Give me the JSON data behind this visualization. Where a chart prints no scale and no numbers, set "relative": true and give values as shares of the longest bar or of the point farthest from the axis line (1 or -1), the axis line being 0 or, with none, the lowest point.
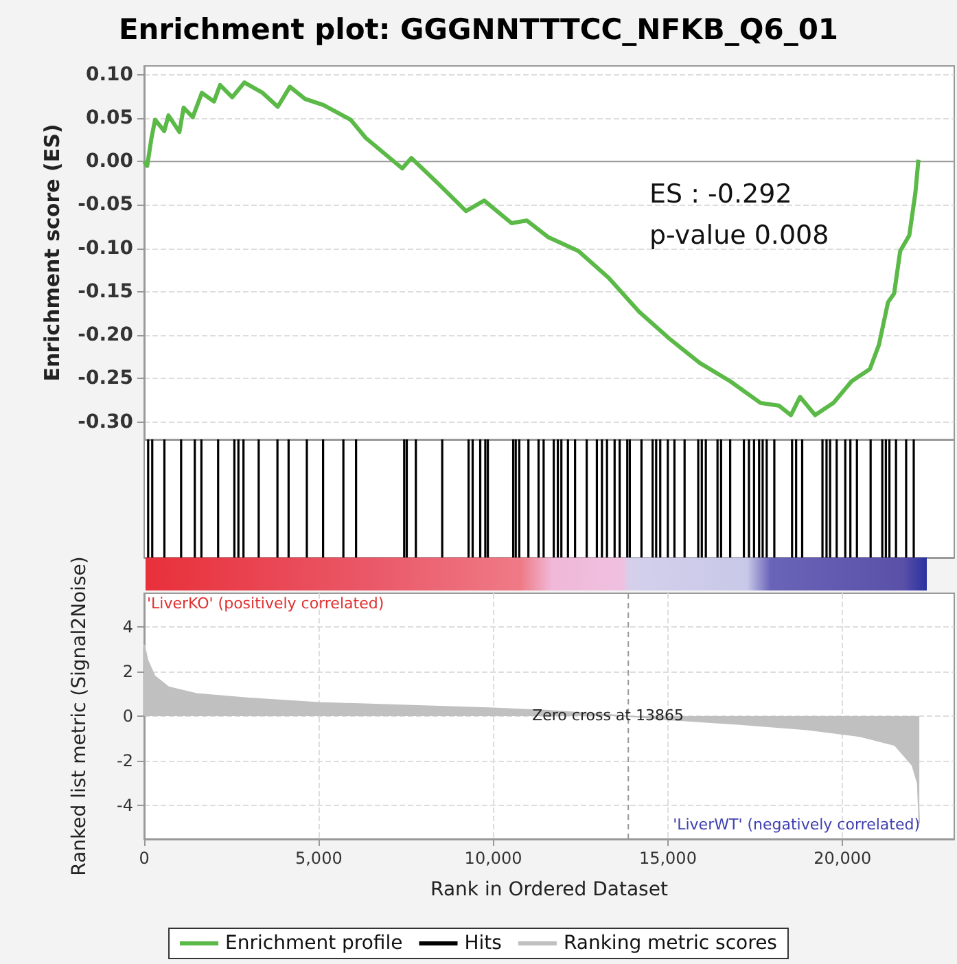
{
  "chart_data": [
    {
      "type": "line",
      "title": "Enrichment plot: GGGNNTTTCC_NFKB_Q6_01",
      "ylabel": "Enrichment score (ES)",
      "annotations": [
        "ES : -0.292",
        "p-value 0.008"
      ],
      "xlim": [
        0,
        23200
      ],
      "ylim": [
        -0.32,
        0.11
      ],
      "yticks": [
        {
          "value": 0.1,
          "label": "0.10"
        },
        0.05,
        {
          "value": 0,
          "label": "0.00"
        },
        -0.05,
        {
          "value": -0.1,
          "label": "-0.10"
        },
        -0.15,
        {
          "value": -0.2,
          "label": "-0.20"
        },
        -0.25,
        {
          "value": -0.3,
          "label": "-0.30"
        }
      ],
      "tick_labels": "y",
      "grid": true,
      "marker": "none",
      "ref_lines": [
        {
          "axis": "y",
          "value": 0,
          "color": "#999999"
        }
      ],
      "series": [
        {
          "name": "Enrichment profile",
          "color": "#5ab947",
          "x": [
            0,
            87,
            209,
            313,
            574,
            696,
            1009,
            1130,
            1391,
            1652,
            2000,
            2174,
            2522,
            2870,
            3391,
            3826,
            4174,
            4609,
            5130,
            5913,
            6348,
            7391,
            7652,
            8435,
            9217,
            9739,
            10522,
            10957,
            11565,
            12435,
            13304,
            14174,
            15043,
            15913,
            16783,
            17652,
            18174,
            18522,
            18783,
            19217,
            19739,
            20261,
            20783,
            21043,
            21304,
            21478,
            21652,
            21913,
            22087,
            22174
          ],
          "values": [
            0,
            -0.005,
            0.027,
            0.048,
            0.035,
            0.053,
            0.034,
            0.062,
            0.051,
            0.079,
            0.069,
            0.088,
            0.074,
            0.091,
            0.079,
            0.063,
            0.086,
            0.072,
            0.065,
            0.048,
            0.027,
            -0.008,
            0.004,
            -0.026,
            -0.057,
            -0.045,
            -0.071,
            -0.068,
            -0.087,
            -0.103,
            -0.134,
            -0.173,
            -0.204,
            -0.232,
            -0.253,
            -0.278,
            -0.281,
            -0.292,
            -0.271,
            -0.292,
            -0.278,
            -0.253,
            -0.239,
            -0.211,
            -0.162,
            -0.152,
            -0.103,
            -0.085,
            -0.036,
            0.002
          ]
        }
      ]
    },
    {
      "type": "bar",
      "relative": true,
      "xlim": [
        0,
        23200
      ],
      "tick_labels": false,
      "grid": false,
      "series": [
        {
          "name": "Hits",
          "color": "#000000",
          "x": [
            114,
            231,
            579,
            1058,
            1450,
            1639,
            2118,
            2583,
            2699,
            2844,
            3280,
            3817,
            4136,
            4659,
            5124,
            5705,
            6068,
            7447,
            7520,
            7781,
            8536,
            9291,
            9407,
            9625,
            9770,
            9843,
            10569,
            10641,
            10743,
            11004,
            11295,
            11440,
            11730,
            11847,
            11948,
            12137,
            12340,
            12674,
            12965,
            13110,
            13255,
            13473,
            13618,
            13836,
            13908,
            14242,
            14562,
            14663,
            14780,
            14997,
            15186,
            15477,
            15868,
            15970,
            16086,
            16420,
            16522,
            16783,
            17175,
            17321,
            17466,
            17611,
            17713,
            17829,
            18047,
            18555,
            18671,
            18845,
            19426,
            19542,
            19644,
            19833,
            20079,
            20225,
            20413,
            20805,
            21139,
            21241,
            21343,
            21532,
            21822,
            22040
          ],
          "values": [
            1,
            1,
            1,
            1,
            1,
            1,
            1,
            1,
            1,
            1,
            1,
            1,
            1,
            1,
            1,
            1,
            1,
            1,
            1,
            1,
            1,
            1,
            1,
            1,
            1,
            1,
            1,
            1,
            1,
            1,
            1,
            1,
            1,
            1,
            1,
            1,
            1,
            1,
            1,
            1,
            1,
            1,
            1,
            1,
            1,
            1,
            1,
            1,
            1,
            1,
            1,
            1,
            1,
            1,
            1,
            1,
            1,
            1,
            1,
            1,
            1,
            1,
            1,
            1,
            1,
            1,
            1,
            1,
            1,
            1,
            1,
            1,
            1,
            1,
            1,
            1,
            1,
            1,
            1,
            1,
            1,
            1
          ]
        }
      ]
    },
    {
      "type": "area",
      "xlabel": "Rank in Ordered Dataset",
      "ylabel": "Ranked list metric (Signal2Noise)",
      "xlim": [
        0,
        23200
      ],
      "xticks": [
        0,
        {
          "value": 5000,
          "label": "5,000"
        },
        {
          "value": 10000,
          "label": "10,000"
        },
        {
          "value": 15000,
          "label": "15,000"
        },
        {
          "value": 20000,
          "label": "20,000"
        }
      ],
      "ylim": [
        -5.5,
        5.5
      ],
      "yticks": [
        4,
        2,
        0,
        -2,
        -4
      ],
      "grid": true,
      "legend": "bottom",
      "annotations": [
        "'LiverKO' (positively correlated)",
        "'LiverWT' (negatively correlated)",
        {
          "text": "Zero cross at 13865",
          "x": 13865,
          "y": 0
        }
      ],
      "ref_lines": [
        {
          "axis": "x",
          "value": 13865,
          "color": "#999999",
          "line_style": "dashed"
        }
      ],
      "series": [
        {
          "name": "Ranking metric scores",
          "color": "#c0c0c0",
          "x": [
            0,
            100,
            300,
            700,
            1500,
            3000,
            5000,
            8000,
            10000,
            11500,
            13865,
            15000,
            17000,
            19000,
            20500,
            21500,
            22000,
            22150,
            22200
          ],
          "values": [
            3.2,
            2.5,
            1.8,
            1.3,
            1.0,
            0.8,
            0.6,
            0.45,
            0.35,
            0.25,
            0,
            -0.15,
            -0.35,
            -0.6,
            -0.9,
            -1.3,
            -2.2,
            -3,
            -4.8
          ]
        }
      ]
    }
  ]
}
